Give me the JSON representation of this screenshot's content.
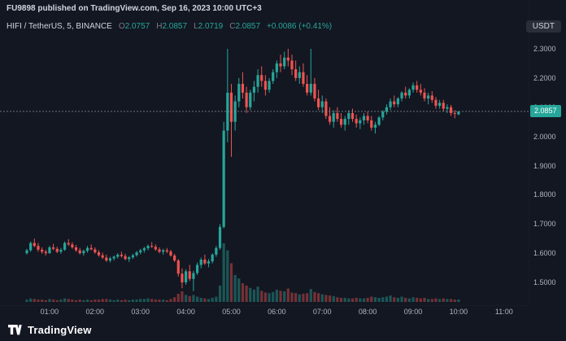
{
  "header": {
    "author": "FU9898",
    "published_text": "published on TradingView.com, Sep 16, 2023 10:00 UTC+3"
  },
  "legend": {
    "symbol_text": "HIFI / TetherUS, 5, BINANCE",
    "ohlc": [
      {
        "label": "O",
        "value": "2.0757"
      },
      {
        "label": "H",
        "value": "2.0857"
      },
      {
        "label": "L",
        "value": "2.0719"
      },
      {
        "label": "C",
        "value": "2.0857"
      }
    ],
    "change": "+0.0086 (+0.41%)"
  },
  "price_axis": {
    "currency_label": "USDT",
    "ticks": [
      "2.3000",
      "2.2000",
      "2.1000",
      "2.0000",
      "1.9000",
      "1.8000",
      "1.7000",
      "1.6000",
      "1.5000"
    ],
    "last_price": "2.0857"
  },
  "time_axis": {
    "ticks": [
      "01:00",
      "02:00",
      "03:00",
      "04:00",
      "05:00",
      "06:00",
      "07:00",
      "08:00",
      "09:00",
      "10:00",
      "11:00"
    ]
  },
  "footer": {
    "brand": "TradingView"
  },
  "colors": {
    "background": "#131722",
    "up": "#26a69a",
    "down": "#ef5350",
    "volume_up": "rgba(38,166,154,0.45)",
    "volume_down": "rgba(239,83,80,0.45)",
    "price_line": "#9598a1",
    "badge_bg": "#26a69a",
    "axis_text": "#b2b5be",
    "legend_text": "#d1d4dc",
    "muted_text": "#787b86"
  },
  "chart_data": {
    "type": "candlestick",
    "title": "HIFI / TetherUS, 5, BINANCE",
    "symbol": "HIFI/USDT",
    "exchange": "BINANCE",
    "interval_minutes": 5,
    "start_time": "00:30",
    "end_time": "10:00",
    "grid": false,
    "ylim": [
      1.45,
      2.335
    ],
    "last_candle": {
      "open": 2.0757,
      "high": 2.0857,
      "low": 2.0719,
      "close": 2.0857
    },
    "change_abs": 0.0086,
    "change_pct": 0.41,
    "columns": [
      "open",
      "high",
      "low",
      "close",
      "volume_rel"
    ],
    "candles": [
      [
        1.6,
        1.615,
        1.595,
        1.61,
        4
      ],
      [
        1.61,
        1.64,
        1.605,
        1.635,
        6
      ],
      [
        1.635,
        1.65,
        1.62,
        1.625,
        5
      ],
      [
        1.625,
        1.635,
        1.605,
        1.612,
        4
      ],
      [
        1.612,
        1.62,
        1.598,
        1.605,
        4
      ],
      [
        1.605,
        1.612,
        1.592,
        1.6,
        3
      ],
      [
        1.6,
        1.625,
        1.598,
        1.62,
        5
      ],
      [
        1.62,
        1.632,
        1.61,
        1.615,
        4
      ],
      [
        1.615,
        1.622,
        1.6,
        1.605,
        3
      ],
      [
        1.605,
        1.618,
        1.598,
        1.612,
        4
      ],
      [
        1.612,
        1.64,
        1.608,
        1.635,
        6
      ],
      [
        1.635,
        1.648,
        1.625,
        1.63,
        5
      ],
      [
        1.63,
        1.638,
        1.615,
        1.62,
        4
      ],
      [
        1.62,
        1.628,
        1.605,
        1.61,
        3
      ],
      [
        1.61,
        1.618,
        1.596,
        1.6,
        4
      ],
      [
        1.6,
        1.612,
        1.592,
        1.608,
        3
      ],
      [
        1.608,
        1.625,
        1.602,
        1.618,
        4
      ],
      [
        1.618,
        1.63,
        1.61,
        1.613,
        3
      ],
      [
        1.613,
        1.62,
        1.598,
        1.603,
        4
      ],
      [
        1.603,
        1.61,
        1.588,
        1.593,
        4
      ],
      [
        1.593,
        1.602,
        1.58,
        1.585,
        5
      ],
      [
        1.585,
        1.595,
        1.57,
        1.575,
        5
      ],
      [
        1.575,
        1.588,
        1.568,
        1.582,
        4
      ],
      [
        1.582,
        1.592,
        1.575,
        1.588,
        3
      ],
      [
        1.588,
        1.6,
        1.582,
        1.595,
        4
      ],
      [
        1.595,
        1.605,
        1.585,
        1.59,
        3
      ],
      [
        1.59,
        1.598,
        1.576,
        1.58,
        4
      ],
      [
        1.58,
        1.59,
        1.57,
        1.586,
        3
      ],
      [
        1.586,
        1.598,
        1.58,
        1.593,
        4
      ],
      [
        1.593,
        1.608,
        1.588,
        1.603,
        4
      ],
      [
        1.603,
        1.615,
        1.596,
        1.61,
        5
      ],
      [
        1.61,
        1.622,
        1.602,
        1.617,
        5
      ],
      [
        1.617,
        1.63,
        1.61,
        1.625,
        6
      ],
      [
        1.625,
        1.638,
        1.618,
        1.622,
        5
      ],
      [
        1.622,
        1.63,
        1.608,
        1.613,
        4
      ],
      [
        1.613,
        1.62,
        1.6,
        1.605,
        4
      ],
      [
        1.605,
        1.615,
        1.595,
        1.61,
        4
      ],
      [
        1.61,
        1.618,
        1.6,
        1.606,
        3
      ],
      [
        1.606,
        1.612,
        1.588,
        1.592,
        5
      ],
      [
        1.592,
        1.598,
        1.57,
        1.575,
        8
      ],
      [
        1.575,
        1.58,
        1.52,
        1.53,
        14
      ],
      [
        1.53,
        1.548,
        1.48,
        1.5,
        18
      ],
      [
        1.5,
        1.545,
        1.492,
        1.538,
        12
      ],
      [
        1.538,
        1.56,
        1.505,
        1.512,
        10
      ],
      [
        1.512,
        1.54,
        1.47,
        1.532,
        12
      ],
      [
        1.532,
        1.568,
        1.525,
        1.56,
        9
      ],
      [
        1.56,
        1.585,
        1.548,
        1.578,
        7
      ],
      [
        1.578,
        1.595,
        1.56,
        1.565,
        6
      ],
      [
        1.565,
        1.58,
        1.552,
        1.572,
        5
      ],
      [
        1.572,
        1.6,
        1.565,
        1.595,
        7
      ],
      [
        1.595,
        1.625,
        1.588,
        1.618,
        9
      ],
      [
        1.618,
        1.7,
        1.612,
        1.69,
        28
      ],
      [
        1.69,
        2.05,
        1.685,
        2.02,
        100
      ],
      [
        2.02,
        2.3,
        1.98,
        2.15,
        88
      ],
      [
        2.15,
        2.18,
        1.93,
        2.05,
        66
      ],
      [
        2.05,
        2.14,
        2.02,
        2.12,
        46
      ],
      [
        2.12,
        2.2,
        2.1,
        2.18,
        40
      ],
      [
        2.18,
        2.22,
        2.13,
        2.15,
        32
      ],
      [
        2.15,
        2.17,
        2.08,
        2.1,
        28
      ],
      [
        2.1,
        2.16,
        2.09,
        2.15,
        24
      ],
      [
        2.15,
        2.19,
        2.12,
        2.17,
        21
      ],
      [
        2.17,
        2.23,
        2.15,
        2.21,
        26
      ],
      [
        2.21,
        2.24,
        2.17,
        2.19,
        19
      ],
      [
        2.19,
        2.21,
        2.14,
        2.16,
        16
      ],
      [
        2.16,
        2.2,
        2.15,
        2.19,
        15
      ],
      [
        2.19,
        2.23,
        2.18,
        2.22,
        17
      ],
      [
        2.22,
        2.26,
        2.2,
        2.25,
        21
      ],
      [
        2.25,
        2.28,
        2.22,
        2.24,
        19
      ],
      [
        2.24,
        2.29,
        2.23,
        2.27,
        18
      ],
      [
        2.27,
        2.3,
        2.24,
        2.26,
        23
      ],
      [
        2.26,
        2.28,
        2.21,
        2.23,
        16
      ],
      [
        2.23,
        2.26,
        2.19,
        2.2,
        15
      ],
      [
        2.2,
        2.24,
        2.18,
        2.22,
        13
      ],
      [
        2.22,
        2.25,
        2.17,
        2.18,
        14
      ],
      [
        2.18,
        2.21,
        2.14,
        2.15,
        15
      ],
      [
        2.15,
        2.3,
        2.14,
        2.18,
        22
      ],
      [
        2.18,
        2.2,
        2.12,
        2.13,
        17
      ],
      [
        2.13,
        2.16,
        2.09,
        2.1,
        15
      ],
      [
        2.1,
        2.14,
        2.08,
        2.12,
        13
      ],
      [
        2.12,
        2.13,
        2.06,
        2.07,
        12
      ],
      [
        2.07,
        2.1,
        2.04,
        2.05,
        11
      ],
      [
        2.05,
        2.09,
        2.03,
        2.08,
        10
      ],
      [
        2.08,
        2.1,
        2.05,
        2.06,
        8
      ],
      [
        2.06,
        2.08,
        2.03,
        2.04,
        7
      ],
      [
        2.04,
        2.07,
        2.02,
        2.06,
        7
      ],
      [
        2.06,
        2.09,
        2.04,
        2.08,
        6
      ],
      [
        2.08,
        2.095,
        2.05,
        2.06,
        6
      ],
      [
        2.06,
        2.075,
        2.03,
        2.045,
        7
      ],
      [
        2.045,
        2.065,
        2.025,
        2.055,
        6
      ],
      [
        2.055,
        2.08,
        2.04,
        2.07,
        6
      ],
      [
        2.07,
        2.085,
        2.045,
        2.055,
        7
      ],
      [
        2.055,
        2.07,
        2.02,
        2.03,
        9
      ],
      [
        2.03,
        2.05,
        2.01,
        2.04,
        8
      ],
      [
        2.04,
        2.07,
        2.035,
        2.065,
        7
      ],
      [
        2.065,
        2.09,
        2.055,
        2.085,
        8
      ],
      [
        2.085,
        2.11,
        2.075,
        2.1,
        9
      ],
      [
        2.1,
        2.13,
        2.09,
        2.12,
        11
      ],
      [
        2.12,
        2.14,
        2.1,
        2.11,
        8
      ],
      [
        2.11,
        2.135,
        2.1,
        2.13,
        7
      ],
      [
        2.13,
        2.155,
        2.12,
        2.15,
        9
      ],
      [
        2.15,
        2.17,
        2.13,
        2.14,
        7
      ],
      [
        2.14,
        2.165,
        2.13,
        2.16,
        6
      ],
      [
        2.16,
        2.185,
        2.15,
        2.175,
        8
      ],
      [
        2.175,
        2.19,
        2.15,
        2.16,
        7
      ],
      [
        2.16,
        2.18,
        2.14,
        2.15,
        6
      ],
      [
        2.15,
        2.165,
        2.12,
        2.13,
        7
      ],
      [
        2.13,
        2.15,
        2.11,
        2.14,
        5
      ],
      [
        2.14,
        2.155,
        2.115,
        2.125,
        5
      ],
      [
        2.125,
        2.135,
        2.095,
        2.105,
        6
      ],
      [
        2.105,
        2.125,
        2.095,
        2.115,
        5
      ],
      [
        2.115,
        2.125,
        2.085,
        2.095,
        6
      ],
      [
        2.095,
        2.11,
        2.08,
        2.1,
        5
      ],
      [
        2.1,
        2.108,
        2.07,
        2.08,
        5
      ],
      [
        2.08,
        2.09,
        2.062,
        2.0771,
        4
      ],
      [
        2.0757,
        2.0857,
        2.0719,
        2.0857,
        4
      ]
    ]
  }
}
